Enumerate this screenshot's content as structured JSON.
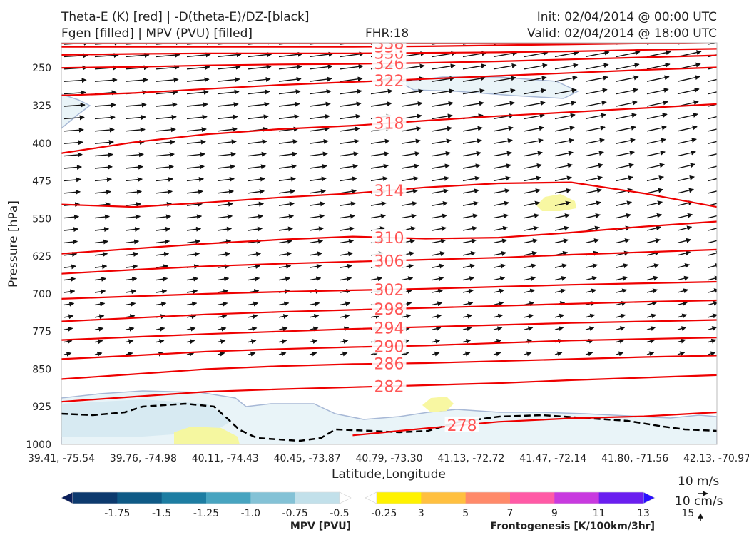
{
  "header": {
    "title_left_1": "Theta-E (K) [red] | -D(theta-E)/DZ-[black]",
    "title_left_2": "Fgen [filled] | MPV (PVU) [filled]",
    "fhr": "FHR:18",
    "init": "Init: 02/04/2014 @ 00:00 UTC",
    "valid": "Valid: 02/04/2014 @ 18:00 UTC"
  },
  "chart_data": {
    "type": "cross-section",
    "xlabel": "Latitude,Longitude",
    "ylabel": "Pressure [hPa]",
    "x_ticks": [
      "39.41, -75.54",
      "39.76, -74.98",
      "40.11, -74.43",
      "40.45, -73.87",
      "40.79, -73.30",
      "41.13, -72.72",
      "41.47, -72.14",
      "41.80, -71.56",
      "42.13, -70.97"
    ],
    "y_ticks": [
      250,
      325,
      400,
      475,
      550,
      625,
      700,
      775,
      850,
      925,
      1000
    ],
    "ylim": [
      1000,
      200
    ],
    "theta_e_color": "#ee0000",
    "theta_e_contours": [
      {
        "level": 278,
        "label": "278",
        "p": [
          null,
          null,
          null,
          null,
          982,
          968,
          955,
          948,
          944,
          936
        ]
      },
      {
        "level": 282,
        "label": "282",
        "p": [
          915,
          905,
          895,
          890,
          886,
          882,
          878,
          872,
          867,
          862
        ]
      },
      {
        "level": 286,
        "label": "286",
        "p": [
          870,
          860,
          850,
          844,
          840,
          838,
          834,
          830,
          826,
          823
        ]
      },
      {
        "level": 290,
        "label": "290",
        "p": [
          830,
          823,
          815,
          810,
          806,
          803,
          798,
          793,
          790,
          787
        ]
      },
      {
        "level": 294,
        "label": "294",
        "p": [
          792,
          786,
          780,
          775,
          770,
          766,
          762,
          758,
          755,
          752
        ]
      },
      {
        "level": 298,
        "label": "298",
        "p": [
          755,
          748,
          741,
          736,
          732,
          728,
          724,
          720,
          716,
          713
        ]
      },
      {
        "level": 302,
        "label": "302",
        "p": [
          710,
          705,
          700,
          696,
          693,
          690,
          686,
          682,
          679,
          676
        ]
      },
      {
        "level": 306,
        "label": "306",
        "p": [
          660,
          652,
          645,
          640,
          636,
          632,
          628,
          622,
          617,
          612
        ]
      },
      {
        "level": 310,
        "label": "310",
        "p": [
          620,
          610,
          600,
          592,
          586,
          590,
          588,
          578,
          566,
          556
        ]
      },
      {
        "level": 314,
        "label": "314",
        "p": [
          522,
          527,
          518,
          508,
          500,
          488,
          480,
          478,
          500,
          527
        ]
      },
      {
        "level": 318,
        "label": "318",
        "p": [
          420,
          398,
          382,
          372,
          365,
          355,
          346,
          338,
          330,
          322
        ]
      },
      {
        "level": 322,
        "label": "322",
        "p": [
          305,
          300,
          292,
          284,
          278,
          272,
          266,
          260,
          254,
          249
        ]
      },
      {
        "level": 326,
        "label": "326",
        "p": [
          250,
          248,
          245,
          243,
          242,
          240,
          237,
          233,
          229,
          225
        ]
      },
      {
        "level": 330,
        "label": "330",
        "p": [
          224,
          222,
          221,
          221,
          221,
          220,
          219,
          217,
          214,
          212
        ]
      },
      {
        "level": 334,
        "label": "334",
        "p": [
          208,
          208,
          208,
          208,
          208,
          207,
          205,
          203,
          201,
          199
        ]
      },
      {
        "level": 338,
        "label": "338",
        "p": [
          201,
          201,
          201,
          201,
          201,
          201,
          201,
          200,
          199,
          198
        ]
      }
    ],
    "mpv_colorbar": {
      "title": "MPV [PVU]",
      "tick_labels": [
        "-1.75",
        "-1.5",
        "-1.25",
        "-1.0",
        "-0.75",
        "-0.5",
        "-0.25"
      ],
      "colors": [
        "#0b1f5b",
        "#0d3a6e",
        "#0f5a86",
        "#1d7da2",
        "#48a4c0",
        "#84c2d6",
        "#c2e0ea",
        "#ffffff"
      ]
    },
    "fgen_colorbar": {
      "title": "Frontogenesis [K/100km/3hr]",
      "tick_labels": [
        "3",
        "5",
        "7",
        "9",
        "11",
        "13",
        "15"
      ],
      "colors": [
        "#ffffff",
        "#fff200",
        "#ffc040",
        "#ff8a6a",
        "#ff5aa6",
        "#c83adf",
        "#6a1ef0",
        "#2a10ff"
      ]
    },
    "wind_legend": {
      "horizontal": "10 m/s",
      "vertical": "10 cm/s"
    }
  }
}
